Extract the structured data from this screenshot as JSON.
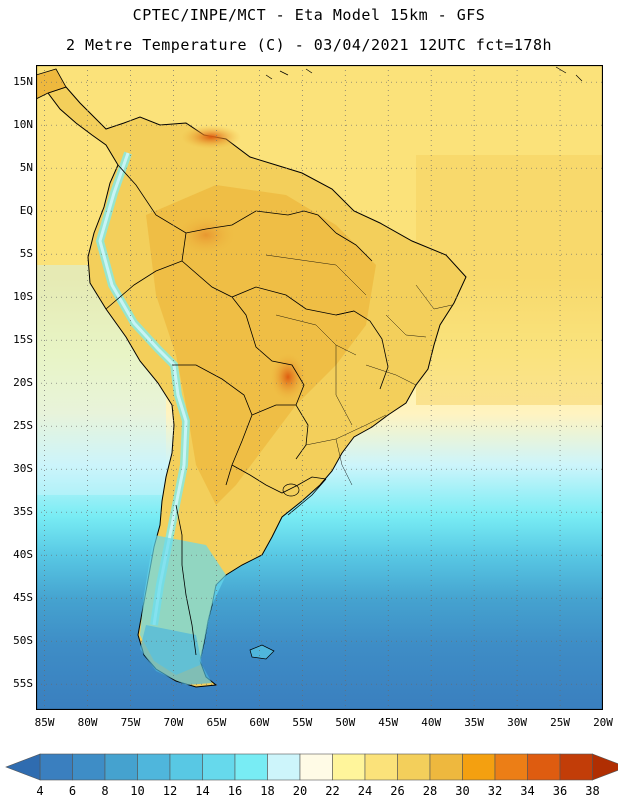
{
  "header": {
    "line1": "CPTEC/INPE/MCT -  Eta Model 15km - GFS",
    "line2": "2 Metre Temperature (C) - 03/04/2021 12UTC fct=178h"
  },
  "map": {
    "region": "South America",
    "variable": "2 Metre Temperature",
    "units": "C",
    "lat_range": [
      -58,
      17
    ],
    "lon_range": [
      -86,
      -20
    ],
    "lat_labels": [
      "15N",
      "10N",
      "5N",
      "EQ",
      "5S",
      "10S",
      "15S",
      "20S",
      "25S",
      "30S",
      "35S",
      "40S",
      "45S",
      "50S",
      "55S"
    ],
    "lon_labels": [
      "85W",
      "80W",
      "75W",
      "70W",
      "65W",
      "60W",
      "55W",
      "50W",
      "45W",
      "40W",
      "35W",
      "30W",
      "25W",
      "20W"
    ]
  },
  "colorbar": {
    "labels": [
      "4",
      "6",
      "8",
      "10",
      "12",
      "14",
      "16",
      "18",
      "20",
      "22",
      "24",
      "26",
      "28",
      "30",
      "32",
      "34",
      "36",
      "38"
    ],
    "colors": [
      "#3a7fbf",
      "#3e8dc6",
      "#45a2cf",
      "#4fb6dc",
      "#58c8e4",
      "#66d9ec",
      "#78ecf4",
      "#cdf5fb",
      "#fffbe6",
      "#fff59b",
      "#fbe27a",
      "#f3cf5b",
      "#eeb83e",
      "#f4a010",
      "#ec7e16",
      "#de5c10",
      "#c23d08"
    ],
    "low_extend_color": "#2f6cb0",
    "high_extend_color": "#b02e02"
  }
}
